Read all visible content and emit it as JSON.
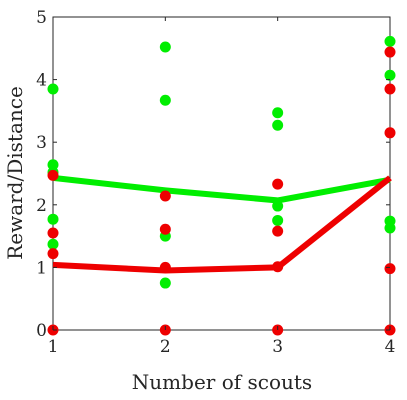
{
  "chart_data": {
    "type": "scatter",
    "title": "",
    "xlabel": "Number of scouts",
    "ylabel": "Reward/Distance",
    "xlim": [
      1,
      4
    ],
    "ylim": [
      0,
      5
    ],
    "x_ticks": [
      "1",
      "2",
      "3",
      "4"
    ],
    "y_ticks": [
      "0",
      "1",
      "2",
      "3",
      "4",
      "5"
    ],
    "grid": false,
    "series": [
      {
        "color": "#00ee00",
        "points": [
          [
            1,
            3.85
          ],
          [
            1,
            2.64
          ],
          [
            1,
            2.52
          ],
          [
            1,
            1.77
          ],
          [
            1,
            1.37
          ],
          [
            2,
            4.52
          ],
          [
            2,
            3.67
          ],
          [
            2,
            1.5
          ],
          [
            2,
            0.75
          ],
          [
            3,
            3.47
          ],
          [
            3,
            3.27
          ],
          [
            3,
            1.98
          ],
          [
            3,
            1.75
          ],
          [
            4,
            4.61
          ],
          [
            4,
            4.07
          ],
          [
            4,
            1.74
          ],
          [
            4,
            1.63
          ]
        ],
        "line": [
          [
            1,
            2.43
          ],
          [
            2,
            2.23
          ],
          [
            3,
            2.07
          ],
          [
            4,
            2.4
          ]
        ]
      },
      {
        "color": "#ee0000",
        "points": [
          [
            1,
            2.47
          ],
          [
            1,
            1.55
          ],
          [
            1,
            1.22
          ],
          [
            1,
            0.0
          ],
          [
            2,
            2.14
          ],
          [
            2,
            1.61
          ],
          [
            2,
            1.0
          ],
          [
            2,
            0.0
          ],
          [
            3,
            2.33
          ],
          [
            3,
            1.58
          ],
          [
            3,
            1.01
          ],
          [
            3,
            0.0
          ],
          [
            4,
            4.44
          ],
          [
            4,
            3.85
          ],
          [
            4,
            3.15
          ],
          [
            4,
            0.98
          ],
          [
            4,
            0.0
          ]
        ],
        "line": [
          [
            1,
            1.04
          ],
          [
            2,
            0.95
          ],
          [
            3,
            1.0
          ],
          [
            4,
            2.43
          ]
        ]
      }
    ]
  }
}
